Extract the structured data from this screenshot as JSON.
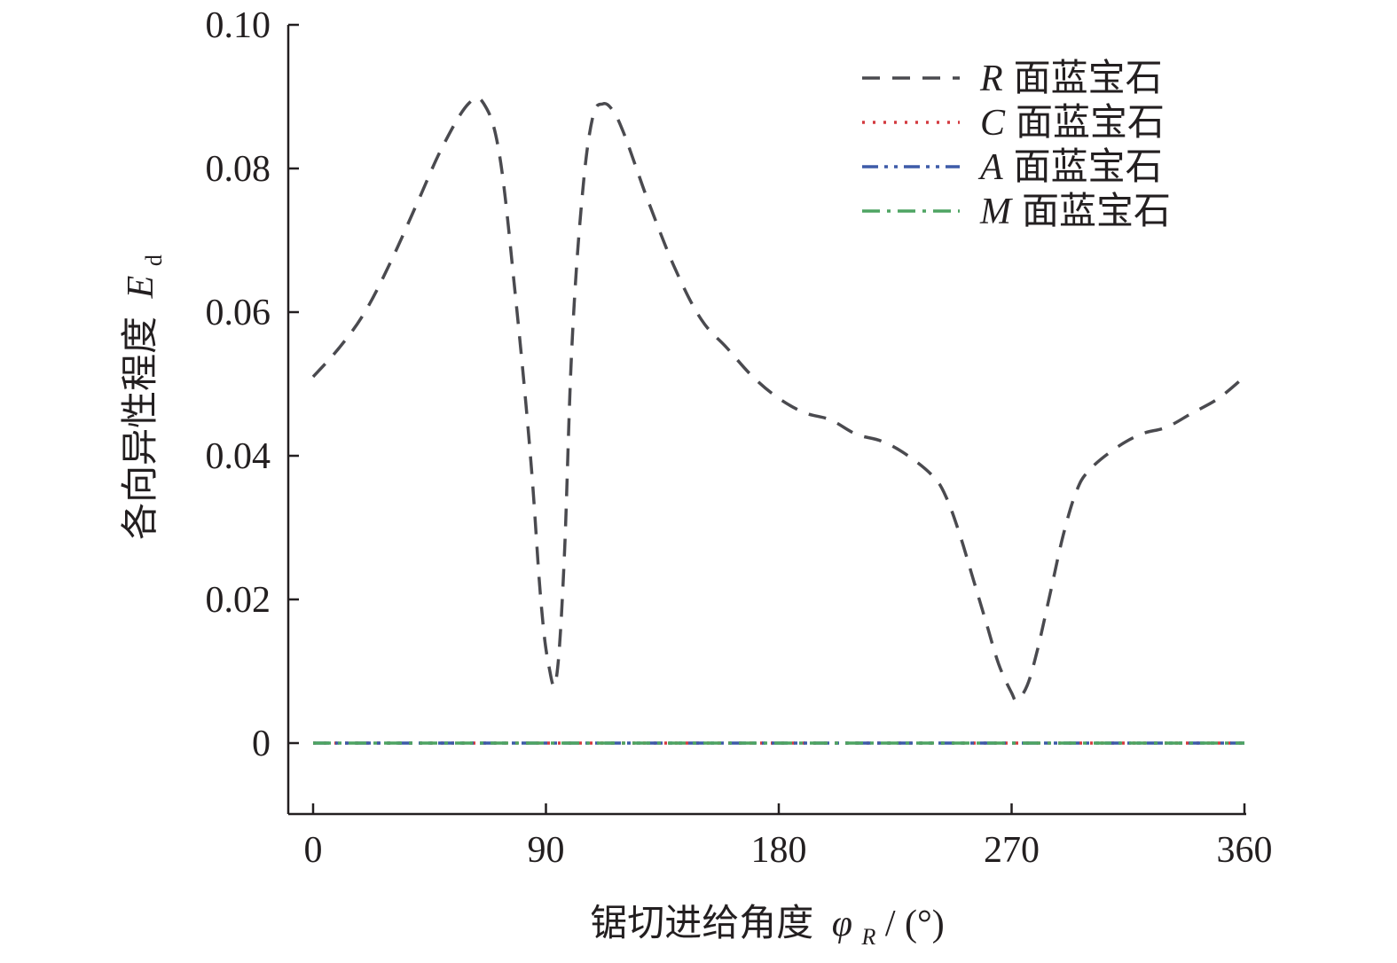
{
  "chart_data": {
    "type": "line",
    "title": "",
    "xlabel": {
      "text": "锯切进给角度",
      "symbol": "φ",
      "subscript": "R",
      "unit": " / (°)"
    },
    "ylabel": {
      "text": "各向异性程度",
      "symbol": "E",
      "subscript": "d"
    },
    "xlim": [
      -10,
      360
    ],
    "ylim": [
      -0.01,
      0.1
    ],
    "x_ticks": [
      0,
      90,
      180,
      270,
      360
    ],
    "x_tick_labels": [
      "0",
      "90",
      "180",
      "270",
      "360"
    ],
    "y_ticks": [
      0,
      0.02,
      0.04,
      0.06,
      0.08,
      0.1
    ],
    "y_tick_labels": [
      "0",
      "0.02",
      "0.04",
      "0.06",
      "0.08",
      "0.10"
    ],
    "grid": false,
    "legend_position": "top-right",
    "series": [
      {
        "name": "面蓝宝石",
        "name_symbol": "R",
        "color": "#4a4a4f",
        "style": "dashed",
        "x": [
          0,
          10,
          20,
          30,
          40,
          50,
          60,
          66,
          72,
          78,
          84,
          88,
          91,
          94,
          97,
          100,
          104,
          108,
          112,
          116,
          120,
          125,
          130,
          140,
          150,
          160,
          170,
          180,
          190,
          200,
          210,
          220,
          230,
          240,
          245,
          250,
          255,
          260,
          265,
          270,
          272,
          276,
          280,
          285,
          290,
          295,
          300,
          310,
          320,
          330,
          340,
          350,
          360
        ],
        "y": [
          0.051,
          0.055,
          0.06,
          0.067,
          0.075,
          0.083,
          0.089,
          0.089,
          0.082,
          0.063,
          0.04,
          0.02,
          0.011,
          0.009,
          0.025,
          0.055,
          0.076,
          0.087,
          0.089,
          0.088,
          0.085,
          0.08,
          0.075,
          0.066,
          0.059,
          0.055,
          0.051,
          0.048,
          0.046,
          0.045,
          0.043,
          0.042,
          0.04,
          0.037,
          0.034,
          0.029,
          0.023,
          0.017,
          0.011,
          0.007,
          0.006,
          0.008,
          0.013,
          0.021,
          0.029,
          0.035,
          0.038,
          0.041,
          0.043,
          0.044,
          0.046,
          0.048,
          0.051
        ]
      },
      {
        "name": "面蓝宝石",
        "name_symbol": "C",
        "color": "#d33a3f",
        "style": "dotted",
        "x": [
          0,
          360
        ],
        "y": [
          0,
          0
        ]
      },
      {
        "name": "面蓝宝石",
        "name_symbol": "A",
        "color": "#3d5ba8",
        "style": "dashdotdot",
        "x": [
          0,
          360
        ],
        "y": [
          0,
          0
        ]
      },
      {
        "name": "面蓝宝石",
        "name_symbol": "M",
        "color": "#4ea462",
        "style": "dashdot",
        "x": [
          0,
          360
        ],
        "y": [
          0,
          0
        ]
      }
    ]
  }
}
